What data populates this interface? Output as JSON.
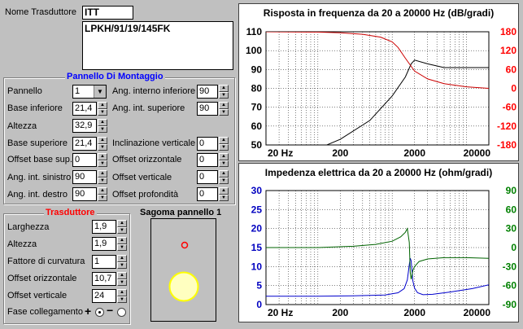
{
  "transducer": {
    "name_label": "Nome Trasduttore",
    "name_value": "ITT",
    "model_value": "LPKH/91/19/145FK"
  },
  "panel": {
    "title": "Pannello Di Montaggio",
    "left_fields": [
      {
        "label": "Pannello",
        "value": "1"
      },
      {
        "label": "Base inferiore",
        "value": "21,4"
      },
      {
        "label": "Altezza",
        "value": "32,9"
      },
      {
        "label": "Base superiore",
        "value": "21,4"
      },
      {
        "label": "Offset base sup.",
        "value": "0"
      },
      {
        "label": "Ang. int. sinistro",
        "value": "90"
      },
      {
        "label": "Ang. int. destro",
        "value": "90"
      }
    ],
    "right_fields": [
      {
        "label": "Ang. interno inferiore",
        "value": "90"
      },
      {
        "label": "Ang. int. superiore",
        "value": "90"
      },
      {
        "label": "Inclinazione verticale",
        "value": "0"
      },
      {
        "label": "Offset orizzontale",
        "value": "0"
      },
      {
        "label": "Offset verticale",
        "value": "0"
      },
      {
        "label": "Offset profondità",
        "value": "0"
      }
    ]
  },
  "trasduttore": {
    "title": "Trasduttore",
    "fields": [
      {
        "label": "Larghezza",
        "value": "1,9"
      },
      {
        "label": "Altezza",
        "value": "1,9"
      },
      {
        "label": "Fattore di curvatura",
        "value": "1"
      },
      {
        "label": "Offset orizzontale",
        "value": "10,7"
      },
      {
        "label": "Offset verticale",
        "value": "24"
      }
    ],
    "phase_label": "Fase collegamento",
    "phase_plus": "+",
    "phase_minus": "−",
    "phase_selected": "+"
  },
  "shape": {
    "title": "Sagoma pannello 1"
  },
  "colors": {
    "title_red": "#ff0000",
    "title_blue": "#0000ff",
    "axis_red": "#ff0000",
    "axis_blue": "#0000c0",
    "axis_green": "#008000",
    "ellipse_fill": "#ffffc0",
    "ellipse_stroke": "#ffff00",
    "dot": "#ff0000"
  },
  "chart_data": [
    {
      "type": "line",
      "title": "Risposta in frequenza da 20 a 20000 Hz (dB/gradi)",
      "x_scale": "log",
      "xlim": [
        20,
        20000
      ],
      "x_ticks": [
        "20 Hz",
        "200",
        "2000",
        "20000"
      ],
      "x_tick_values": [
        20,
        200,
        2000,
        20000
      ],
      "ylim": [
        50,
        110
      ],
      "y_ticks": [
        "110",
        "100",
        "90",
        "80",
        "70",
        "60",
        "50"
      ],
      "y_tick_values": [
        110,
        100,
        90,
        80,
        70,
        60,
        50
      ],
      "y2lim": [
        -180,
        180
      ],
      "y2_ticks": [
        "180",
        "120",
        "60",
        "0",
        "-60",
        "-120",
        "-180"
      ],
      "y2_tick_values": [
        180,
        120,
        60,
        0,
        -60,
        -120,
        -180
      ],
      "grid": true,
      "series": [
        {
          "axis": "left",
          "color": "#000000",
          "x": [
            20,
            100,
            200,
            500,
            1000,
            1500,
            1800,
            2000,
            3000,
            5000,
            10000,
            20000
          ],
          "y": [
            39,
            48,
            53,
            63,
            76,
            86,
            93,
            95,
            93,
            91,
            91,
            91
          ]
        },
        {
          "axis": "right",
          "color": "#cc0000",
          "x": [
            20,
            100,
            200,
            400,
            700,
            1000,
            1200,
            1500,
            2000,
            3000,
            5000,
            10000,
            20000
          ],
          "y": [
            180,
            179,
            177,
            172,
            163,
            148,
            130,
            96,
            55,
            30,
            15,
            5,
            0
          ]
        }
      ]
    },
    {
      "type": "line",
      "title": "Impedenza elettrica da 20 a 20000 Hz (ohm/gradi)",
      "x_scale": "log",
      "xlim": [
        20,
        20000
      ],
      "x_ticks": [
        "20 Hz",
        "200",
        "2000",
        "20000"
      ],
      "x_tick_values": [
        20,
        200,
        2000,
        20000
      ],
      "ylim": [
        0,
        30
      ],
      "y_ticks": [
        "30",
        "25",
        "20",
        "15",
        "10",
        "5",
        "0"
      ],
      "y_tick_values": [
        30,
        25,
        20,
        15,
        10,
        5,
        0
      ],
      "y2lim": [
        -90,
        90
      ],
      "y2_ticks": [
        "90",
        "60",
        "30",
        "0",
        "-30",
        "-60",
        "-90"
      ],
      "y2_tick_values": [
        90,
        60,
        30,
        0,
        -30,
        -60,
        -90
      ],
      "grid": true,
      "series": [
        {
          "axis": "left",
          "color": "#0000cc",
          "x": [
            20,
            100,
            300,
            800,
            1200,
            1450,
            1600,
            1700,
            1750,
            1800,
            1900,
            2000,
            2200,
            2600,
            3500,
            6000,
            12000,
            20000
          ],
          "y": [
            2.2,
            2.2,
            2.3,
            2.5,
            3.1,
            4.2,
            6.5,
            10.5,
            12.2,
            11.5,
            6.2,
            4.3,
            3.1,
            2.6,
            2.7,
            3.3,
            4.2,
            5.2
          ]
        },
        {
          "axis": "right",
          "color": "#006400",
          "x": [
            20,
            100,
            300,
            600,
            1000,
            1300,
            1500,
            1600,
            1700,
            1750,
            1800,
            1900,
            2000,
            2300,
            3000,
            5000,
            10000,
            20000
          ],
          "y": [
            0,
            0,
            2,
            5,
            10,
            17,
            24,
            30,
            8,
            -40,
            -50,
            -36,
            -30,
            -22,
            -18,
            -16,
            -16,
            -17
          ]
        }
      ]
    }
  ]
}
